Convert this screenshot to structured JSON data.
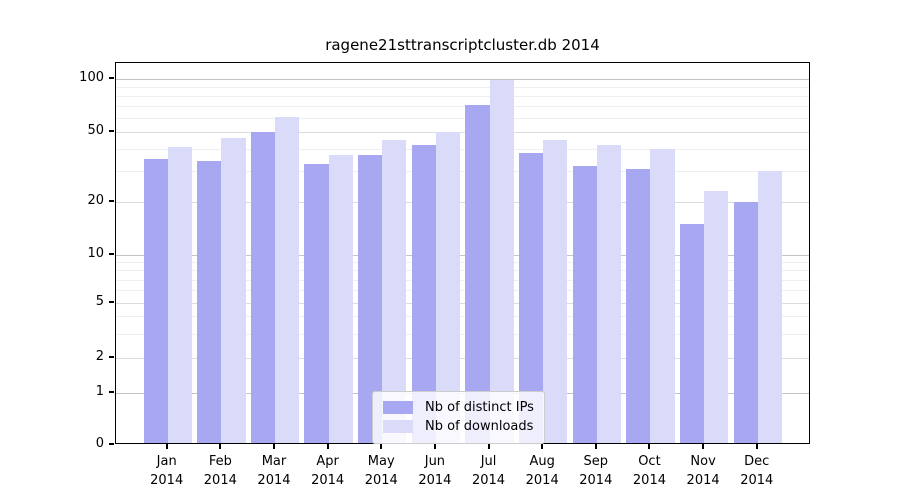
{
  "title": "ragene21sttranscriptcluster.db 2014",
  "colors": {
    "ips_bar": "#a8a8f2",
    "downloads_bar": "#dadaf9",
    "grid_decade": "#c4c4c4",
    "grid_major": "#dcdcdc",
    "grid_minor": "#efefef",
    "axis": "#000000",
    "background": "#ffffff"
  },
  "chart_data": {
    "type": "bar",
    "title": "ragene21sttranscriptcluster.db 2014",
    "categories": [
      "Jan",
      "Feb",
      "Mar",
      "Apr",
      "May",
      "Jun",
      "Jul",
      "Aug",
      "Sep",
      "Oct",
      "Nov",
      "Dec"
    ],
    "year": "2014",
    "series": [
      {
        "name": "Nb of distinct IPs",
        "color": "#a8a8f2",
        "values": [
          35,
          34,
          50,
          33,
          37,
          42,
          71,
          38,
          32,
          31,
          15,
          20
        ]
      },
      {
        "name": "Nb of downloads",
        "color": "#dadaf9",
        "values": [
          41,
          46,
          61,
          37,
          45,
          50,
          98,
          45,
          42,
          40,
          23,
          30
        ]
      }
    ],
    "yscale": "log-like",
    "yticks": [
      0,
      1,
      2,
      5,
      10,
      20,
      50,
      100
    ],
    "minor_gridlines": [
      3,
      4,
      6,
      7,
      8,
      9,
      30,
      40,
      60,
      70,
      80,
      90
    ],
    "ylim": [
      0,
      100
    ],
    "grid": true,
    "legend_position": "bottom-center"
  }
}
